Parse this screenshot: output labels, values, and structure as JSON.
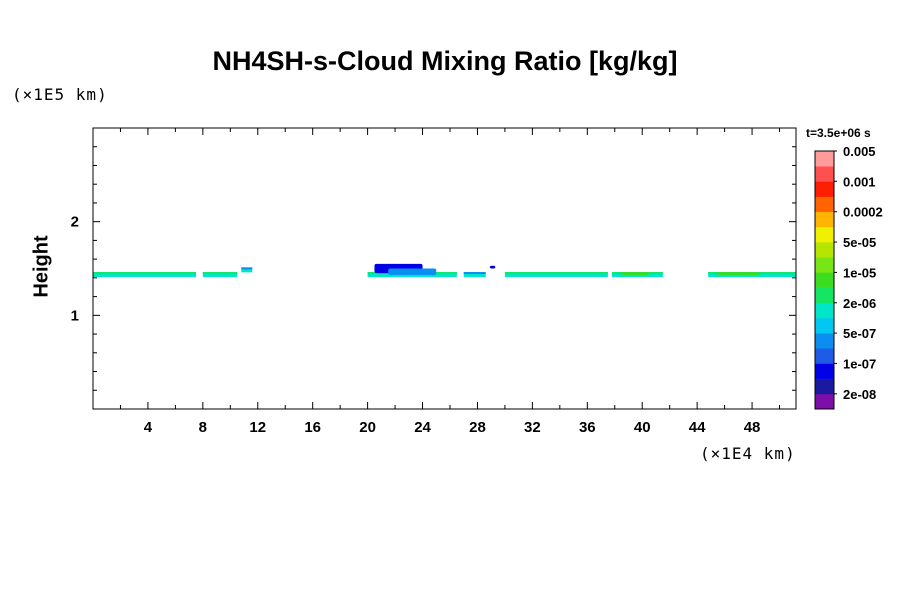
{
  "chart_data": {
    "type": "heatmap",
    "title": "NH4SH-s-Cloud Mixing Ratio [kg/kg]",
    "xlabel": "",
    "x_unit_label": "(×1E4 km)",
    "ylabel": "Height",
    "y_unit_label": "(×1E5 km)",
    "time_label": "t=3.5e+06 s",
    "xlim": [
      0,
      51.2
    ],
    "ylim": [
      0,
      3.0
    ],
    "x_ticks": [
      "4",
      "8",
      "12",
      "16",
      "20",
      "24",
      "28",
      "32",
      "36",
      "40",
      "44",
      "48"
    ],
    "x_tick_values": [
      4,
      8,
      12,
      16,
      20,
      24,
      28,
      32,
      36,
      40,
      44,
      48
    ],
    "y_ticks": [
      "1",
      "2"
    ],
    "y_tick_values": [
      1,
      2
    ],
    "colorbar": {
      "colors": [
        "#7b0fa8",
        "#1a1aa0",
        "#0000e6",
        "#1e5be6",
        "#0a8ef0",
        "#00c8f0",
        "#00e6c8",
        "#14e664",
        "#3cdc1e",
        "#78e614",
        "#b4e600",
        "#f0f000",
        "#ffb400",
        "#ff6400",
        "#ff1e00",
        "#ff5050",
        "#ff9b9b"
      ],
      "labels": [
        "2e-08",
        "1e-07",
        "5e-07",
        "2e-06",
        "1e-05",
        "5e-05",
        "0.0002",
        "0.001",
        "0.005"
      ]
    },
    "cloud_layer_segments": [
      {
        "x0": 0.0,
        "x1": 7.5,
        "y": 1.43,
        "level": "2e-06"
      },
      {
        "x0": 8.0,
        "x1": 10.5,
        "y": 1.43,
        "level": "2e-06"
      },
      {
        "x0": 10.8,
        "x1": 11.6,
        "y": 1.48,
        "level": "5e-07"
      },
      {
        "x0": 20.0,
        "x1": 26.5,
        "y": 1.43,
        "level": "2e-06"
      },
      {
        "x0": 27.0,
        "x1": 28.6,
        "y": 1.43,
        "level": "5e-07"
      },
      {
        "x0": 30.0,
        "x1": 37.5,
        "y": 1.43,
        "level": "2e-06"
      },
      {
        "x0": 37.8,
        "x1": 41.5,
        "y": 1.43,
        "level": "2e-06"
      },
      {
        "x0": 44.8,
        "x1": 51.2,
        "y": 1.43,
        "level": "2e-06"
      }
    ],
    "cloud_cells": [
      {
        "x0": 20.5,
        "x1": 24.0,
        "y0": 1.45,
        "y1": 1.55,
        "level": "1e-07"
      },
      {
        "x0": 21.5,
        "x1": 25.0,
        "y0": 1.43,
        "y1": 1.5,
        "level": "5e-07"
      },
      {
        "x0": 28.9,
        "x1": 29.3,
        "y0": 1.5,
        "y1": 1.53,
        "level": "1e-07"
      },
      {
        "x0": 38.5,
        "x1": 40.5,
        "y0": 1.43,
        "y1": 1.46,
        "level": "1e-05"
      },
      {
        "x0": 45.5,
        "x1": 48.5,
        "y0": 1.43,
        "y1": 1.46,
        "level": "1e-05"
      }
    ]
  }
}
